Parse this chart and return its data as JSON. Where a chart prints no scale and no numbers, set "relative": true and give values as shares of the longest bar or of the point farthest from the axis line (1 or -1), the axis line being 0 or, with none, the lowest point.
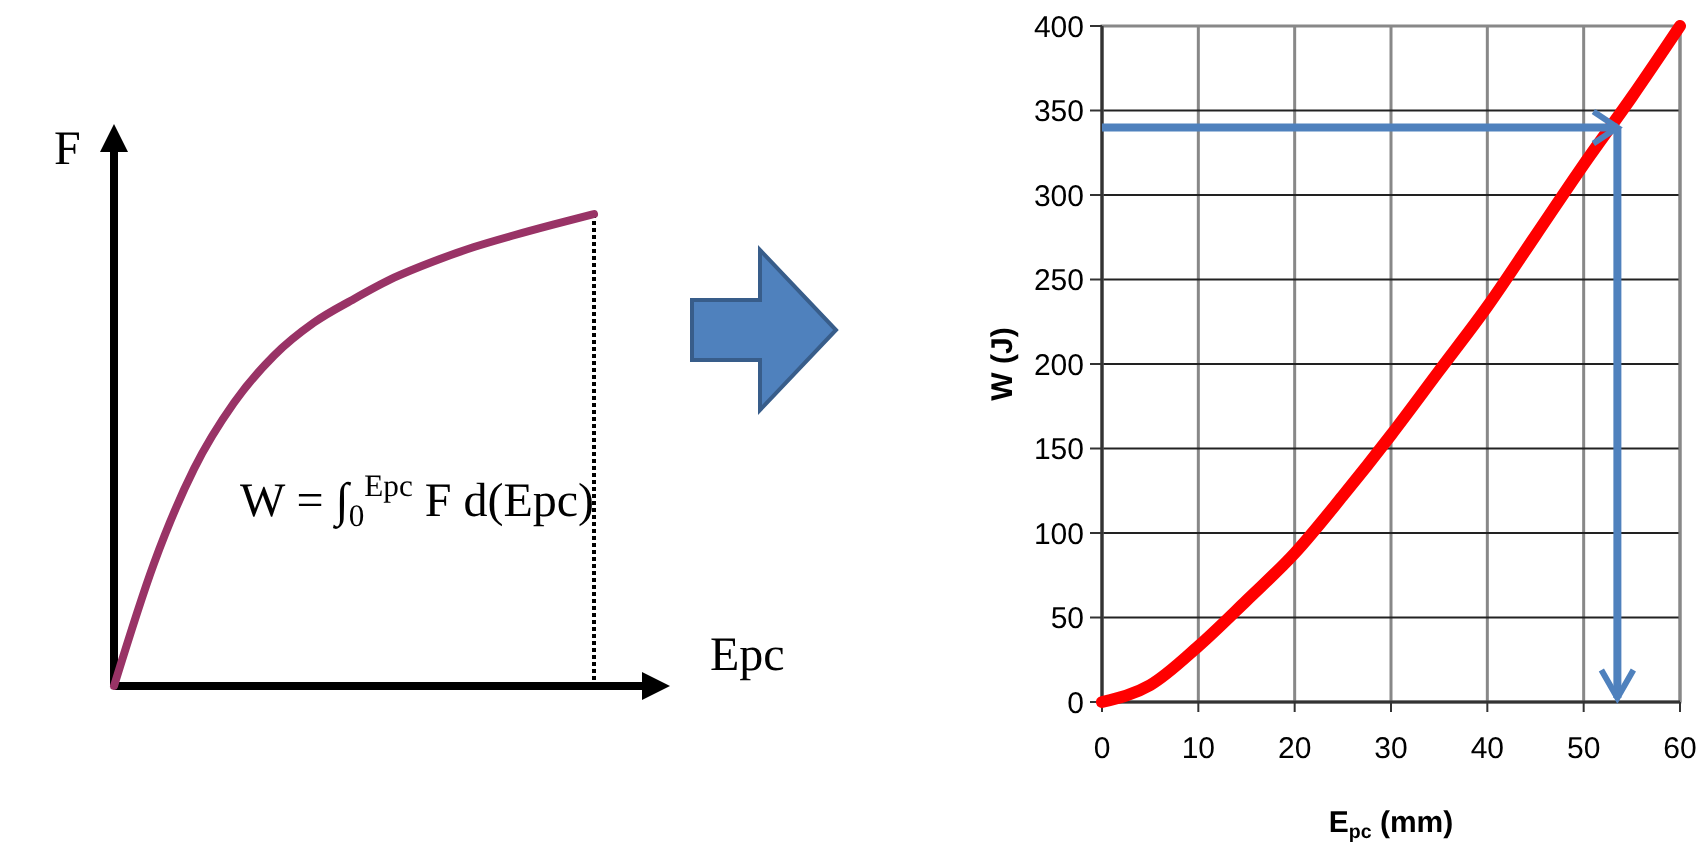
{
  "chart_data": [
    {
      "type": "line",
      "relative": true,
      "xlabel": "Epc",
      "ylabel": "F",
      "categories": [
        null,
        null,
        null,
        null,
        null,
        null,
        null,
        null,
        null,
        null,
        null,
        null,
        null
      ],
      "series": [
        {
          "color": "#993366",
          "values": [
            0,
            0.26,
            0.46,
            0.6,
            0.7,
            0.77,
            0.82,
            0.865,
            0.9,
            0.93,
            0.955,
            0.978,
            1
          ]
        }
      ],
      "annotations": [
        "W = ∫$_{0}$$^{Epc}$ F d(Epc)"
      ],
      "grid": false
    },
    {
      "type": "line",
      "xlabel": "E$_{pc}$ (mm)",
      "ylabel": "W (J)",
      "xlim": [
        0,
        60
      ],
      "ylim": [
        0,
        400
      ],
      "xticks": [
        0,
        10,
        20,
        30,
        40,
        50,
        60
      ],
      "yticks": [
        0,
        50,
        100,
        150,
        200,
        250,
        300,
        350,
        400
      ],
      "grid": true,
      "series": [
        {
          "color": "#ff0000",
          "x": [
            0,
            5,
            10,
            15,
            20,
            25,
            30,
            35,
            40,
            45,
            50,
            55,
            60
          ],
          "values": [
            0,
            10,
            33,
            60,
            88,
            122,
            158,
            196,
            234,
            276,
            318,
            358,
            400
          ]
        }
      ],
      "ref_lines": [
        {
          "axis": "y",
          "value": 340,
          "color": "#4f81bd"
        },
        {
          "axis": "x",
          "value": 53.5,
          "color": "#4f81bd"
        }
      ]
    }
  ]
}
